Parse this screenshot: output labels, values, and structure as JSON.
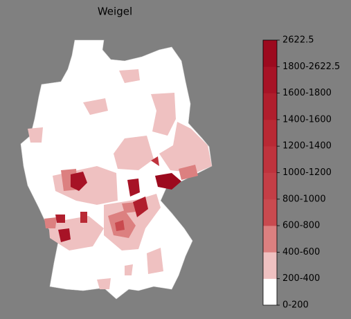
{
  "title": "Weigel",
  "colorbar": {
    "ticks": [
      "0-200",
      "200-400",
      "400-600",
      "600-800",
      "800-1000",
      "1000-1200",
      "1200-1400",
      "1400-1600",
      "1600-1800",
      "1800-2622.5",
      "2622.5"
    ],
    "colors": [
      "#ffffff",
      "#efc1c1",
      "#dc8080",
      "#c94a4f",
      "#c43e46",
      "#bf333d",
      "#b92934",
      "#b01e2d",
      "#a71326",
      "#9c0a1e"
    ]
  }
}
